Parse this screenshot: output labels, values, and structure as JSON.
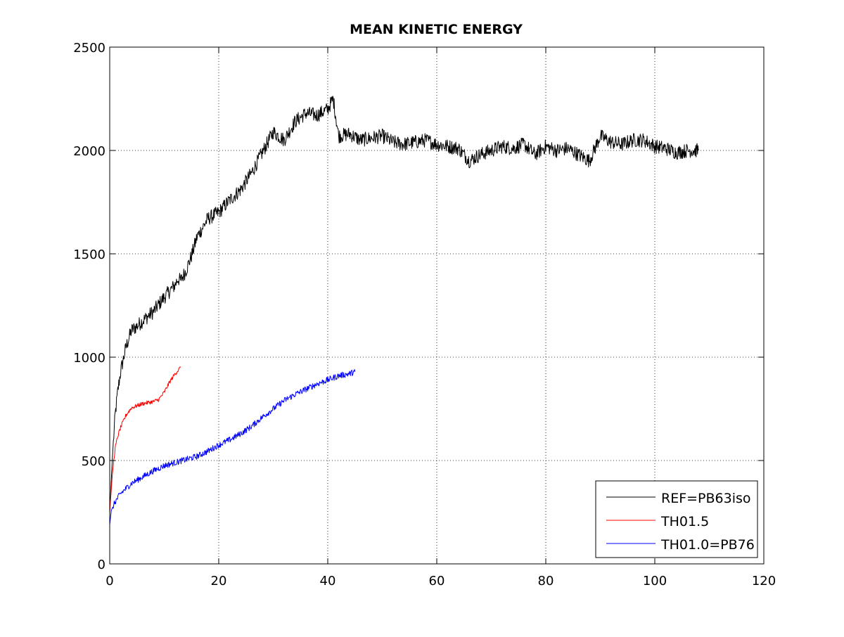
{
  "chart_data": {
    "type": "line",
    "title": "MEAN KINETIC ENERGY",
    "xlabel": "",
    "ylabel": "",
    "xlim": [
      0,
      120
    ],
    "ylim": [
      0,
      2500
    ],
    "xticks": [
      0,
      20,
      40,
      60,
      80,
      100,
      120
    ],
    "yticks": [
      0,
      500,
      1000,
      1500,
      2000,
      2500
    ],
    "grid": true,
    "legend_position": "bottom-right",
    "series": [
      {
        "name": "REF=PB63iso",
        "color": "#000000",
        "x": [
          0,
          0.5,
          1,
          1.5,
          2,
          3,
          4,
          5,
          6,
          8,
          10,
          12,
          12.5,
          13,
          14,
          15,
          16,
          18,
          20,
          22,
          24,
          26,
          28,
          30,
          32,
          34,
          36,
          38,
          40,
          41,
          42,
          44,
          46,
          48,
          50,
          52,
          54,
          56,
          58,
          60,
          62,
          64,
          66,
          68,
          70,
          72,
          74,
          76,
          78,
          80,
          82,
          84,
          86,
          88,
          90,
          92,
          94,
          96,
          98,
          100,
          102,
          104,
          106,
          108
        ],
        "y": [
          250,
          520,
          720,
          840,
          930,
          1050,
          1130,
          1150,
          1175,
          1220,
          1290,
          1350,
          1380,
          1370,
          1420,
          1490,
          1580,
          1670,
          1700,
          1760,
          1810,
          1890,
          1990,
          2090,
          2050,
          2140,
          2180,
          2170,
          2200,
          2250,
          2070,
          2080,
          2050,
          2060,
          2070,
          2040,
          2030,
          2040,
          2050,
          2030,
          2020,
          2010,
          1950,
          1980,
          2000,
          2020,
          2010,
          2030,
          1980,
          2020,
          2000,
          2010,
          1980,
          1950,
          2070,
          2040,
          2030,
          2050,
          2050,
          2020,
          2010,
          1990,
          2000,
          2000
        ],
        "noise": 35
      },
      {
        "name": "TH01.5",
        "color": "#ff0000",
        "x": [
          0,
          0.5,
          1,
          1.5,
          2,
          3,
          4,
          5,
          6,
          7,
          8,
          9,
          10,
          11,
          12,
          13
        ],
        "y": [
          250,
          440,
          560,
          620,
          660,
          720,
          755,
          765,
          775,
          780,
          785,
          795,
          830,
          880,
          920,
          950
        ],
        "noise": 10
      },
      {
        "name": "TH01.0=PB76",
        "color": "#0000ff",
        "x": [
          0,
          0.3,
          1,
          2,
          4,
          6,
          8,
          10,
          12,
          14,
          16,
          18,
          20,
          22,
          24,
          26,
          28,
          30,
          32,
          34,
          36,
          38,
          40,
          42,
          44,
          45
        ],
        "y": [
          190,
          260,
          300,
          340,
          390,
          420,
          450,
          475,
          490,
          505,
          520,
          545,
          575,
          600,
          630,
          665,
          710,
          750,
          790,
          820,
          845,
          870,
          890,
          910,
          920,
          930
        ],
        "noise": 15
      }
    ]
  }
}
